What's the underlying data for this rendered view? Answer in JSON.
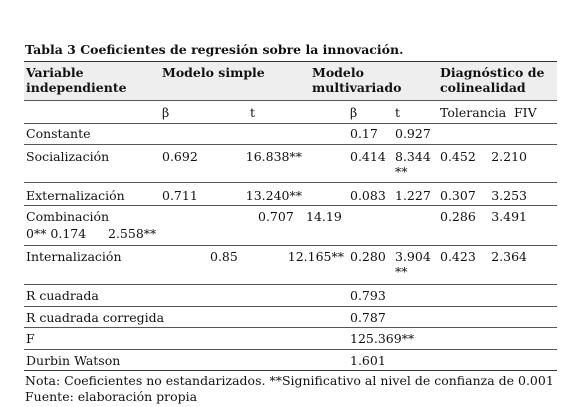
{
  "title": "Tabla 3 Coeficientes de regresión sobre la innovación.",
  "header": {
    "row1": [
      "Variable independiente",
      "Modelo simple",
      "Modelo multivariado",
      "Diagnóstico de colinealidad"
    ],
    "row2": [
      "β",
      "t",
      "β",
      "t",
      "Tolerancia",
      "FIV"
    ]
  },
  "rows": [
    [
      "Constante",
      "0.17",
      "0.927"
    ],
    [
      "Socialización",
      "0.692",
      "16.838**",
      "0.414",
      "8.344 **",
      "0.452",
      "2.210"
    ],
    [
      "Externalización",
      "0.711",
      "13.240**",
      "0.083",
      "1.227",
      "0.307",
      "3.253"
    ],
    [
      "Combinación",
      "0.707",
      "14.19",
      "0** 0.174",
      "2.558**",
      "0.286",
      "3.491"
    ],
    [
      "Internalización",
      "0.85",
      "12.165**",
      "0.280",
      "3.904 **",
      "0.423",
      "2.364"
    ],
    [
      "R cuadrada",
      "0.793"
    ],
    [
      "R cuadrada corregida",
      "0.787"
    ],
    [
      "F",
      "125.369**"
    ],
    [
      "Durbin Watson",
      "1.601"
    ]
  ],
  "note": "Nota: Coeficientes no estandarizados. **Significativo al nivel de confianza de 0.001 Fuente: elaboración propia"
}
